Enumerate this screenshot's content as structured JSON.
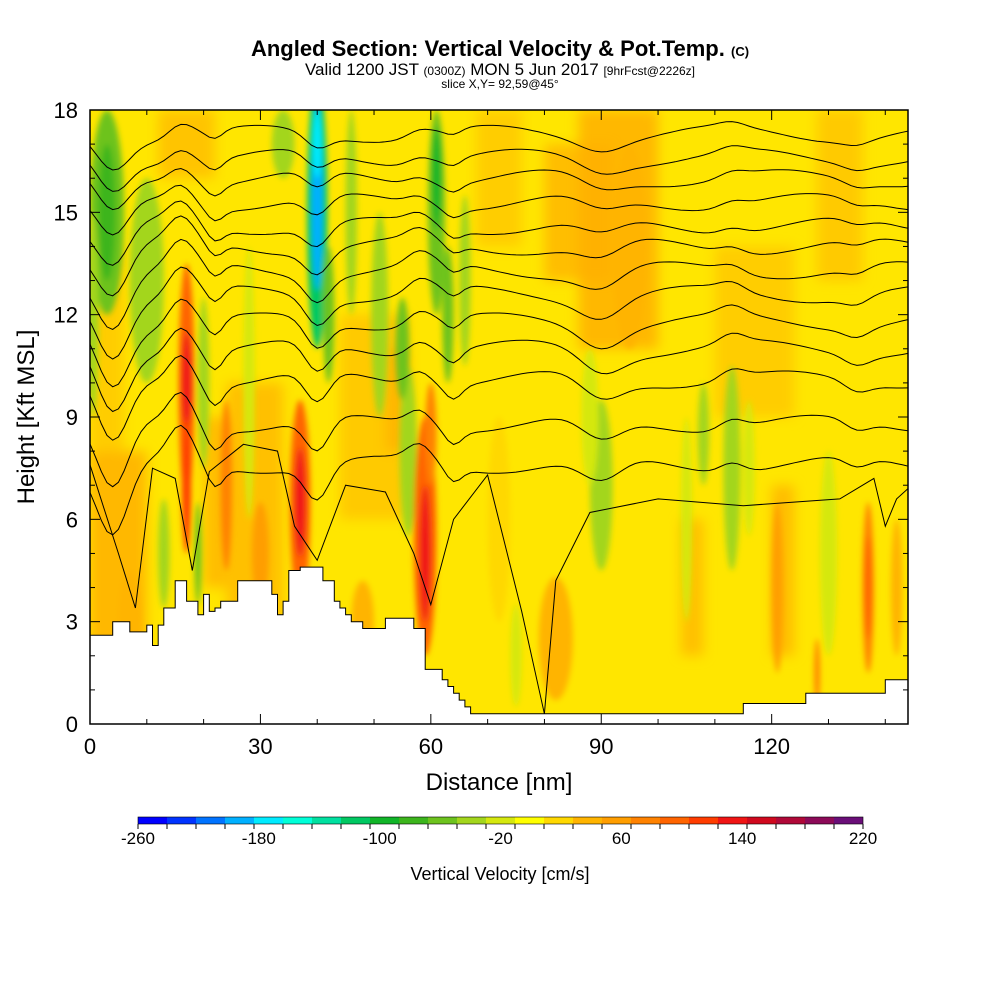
{
  "title": {
    "main": "Angled Section: Vertical Velocity & Pot.Temp.",
    "main_units": "(C)",
    "valid_prefix": "Valid 1200 JST",
    "valid_utc": "(0300Z)",
    "valid_date": "MON 5 Jun 2017",
    "forecast": "[9hrFcst@2226z]",
    "slice": "slice X,Y= 92,59@45°"
  },
  "chart_data": {
    "type": "heatmap",
    "xlabel": "Distance [nm]",
    "ylabel": "Height [Kft MSL]",
    "xlim": [
      0,
      144
    ],
    "ylim": [
      0,
      18
    ],
    "x_ticks": [
      0,
      30,
      60,
      90,
      120
    ],
    "y_ticks": [
      0,
      3,
      6,
      9,
      12,
      15,
      18
    ],
    "background_value": "yellow/orange (0 to 40 cm/s)",
    "terrain_profile": {
      "x": [
        0,
        3,
        4,
        6,
        7,
        9,
        10,
        11,
        12,
        13,
        14,
        15,
        16,
        17,
        18,
        19,
        20,
        21,
        22,
        23,
        24,
        26,
        27,
        28,
        29,
        30,
        31,
        32,
        33,
        34,
        35,
        37,
        38,
        39,
        40,
        41,
        42,
        43,
        44,
        45,
        46,
        47,
        48,
        49,
        50,
        51,
        52,
        53,
        54,
        55,
        56,
        57,
        58,
        59,
        60,
        61,
        62,
        63,
        64,
        65,
        66,
        67,
        68,
        69,
        70,
        113,
        114,
        115,
        125,
        126,
        139,
        140,
        144
      ],
      "height_kft": [
        2.6,
        2.6,
        3.0,
        3.0,
        2.7,
        2.7,
        2.9,
        2.3,
        2.9,
        3.4,
        3.4,
        4.2,
        4.2,
        3.6,
        3.6,
        3.2,
        3.8,
        3.3,
        3.4,
        3.6,
        3.6,
        4.2,
        4.2,
        4.2,
        4.2,
        4.2,
        4.2,
        3.8,
        3.2,
        3.6,
        4.5,
        4.6,
        4.6,
        4.6,
        4.6,
        4.2,
        4.2,
        3.6,
        3.4,
        3.2,
        3.0,
        3.0,
        2.8,
        2.8,
        2.8,
        2.8,
        3.1,
        3.1,
        3.1,
        3.1,
        3.1,
        2.8,
        2.8,
        1.6,
        1.6,
        1.6,
        1.3,
        1.1,
        0.9,
        0.7,
        0.5,
        0.3,
        0.3,
        0.3,
        0.3,
        0.3,
        0.3,
        0.6,
        0.6,
        0.9,
        0.9,
        1.3,
        1.3
      ]
    },
    "updrafts": [
      {
        "x": 17,
        "y": 10,
        "value": 140
      },
      {
        "x": 37,
        "y": 7,
        "value": 140
      },
      {
        "x": 59,
        "y": 5.5,
        "value": 140
      },
      {
        "x": 137,
        "y": 4,
        "value": 100
      }
    ],
    "downdrafts": [
      {
        "x": 40,
        "y": 14,
        "value": -200
      },
      {
        "x": 61,
        "y": 15,
        "value": -80
      },
      {
        "x": 4,
        "y": 14,
        "value": -80
      },
      {
        "x": 20,
        "y": 9,
        "value": -60
      },
      {
        "x": 90,
        "y": 7,
        "value": -50
      }
    ],
    "colorbar": {
      "label": "Vertical Velocity [cm/s]",
      "min": -260,
      "max": 220,
      "step": 20,
      "tick_labels": [
        "-260",
        "-180",
        "-100",
        "-20",
        "60",
        "140",
        "220"
      ],
      "colors": [
        "#0000ff",
        "#0033ff",
        "#0073ff",
        "#00b0ff",
        "#00ebff",
        "#00ffd8",
        "#00e0a0",
        "#00c862",
        "#11b528",
        "#3cb51c",
        "#6dc31e",
        "#a3d61d",
        "#d5e80f",
        "#ffff00",
        "#ffd800",
        "#ffb400",
        "#ff9e00",
        "#ff8200",
        "#ff6400",
        "#ff3c00",
        "#f01414",
        "#d0081e",
        "#b00838",
        "#8c0a58",
        "#6a0e78"
      ]
    },
    "contour_variable": "Potential Temperature (C)"
  }
}
